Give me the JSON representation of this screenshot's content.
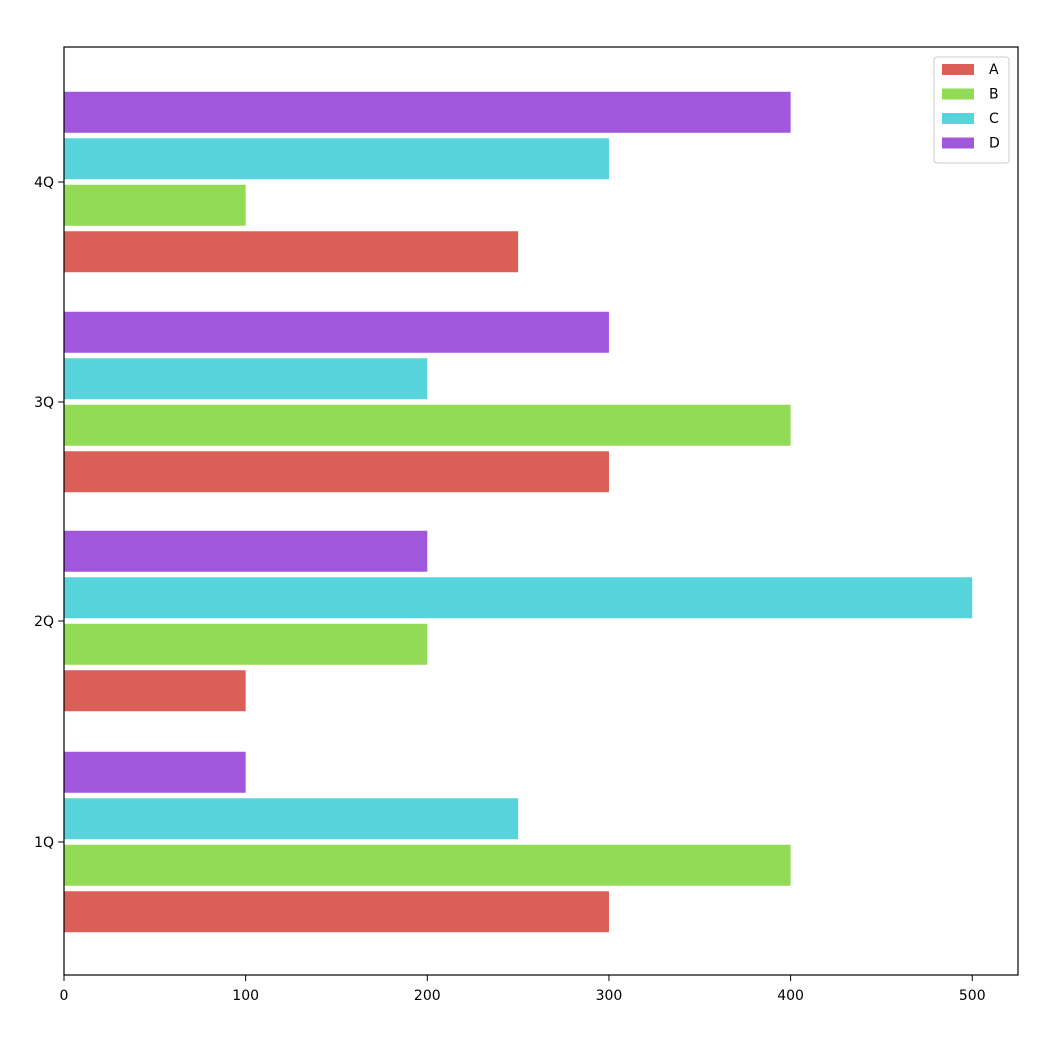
{
  "chart_data": {
    "type": "bar",
    "orientation": "horizontal",
    "categories": [
      "1Q",
      "2Q",
      "3Q",
      "4Q"
    ],
    "series": [
      {
        "name": "A",
        "color": "#db5f57",
        "values": [
          300,
          100,
          300,
          250
        ]
      },
      {
        "name": "B",
        "color": "#91db57",
        "values": [
          400,
          200,
          400,
          100
        ]
      },
      {
        "name": "C",
        "color": "#57d3db",
        "values": [
          250,
          500,
          200,
          300
        ]
      },
      {
        "name": "D",
        "color": "#a157db",
        "values": [
          100,
          200,
          300,
          400
        ]
      }
    ],
    "xlim": [
      0,
      525
    ],
    "xticks": [
      0,
      100,
      200,
      300,
      400,
      500
    ],
    "grid": false,
    "legend": "top-right",
    "title": "",
    "xlabel": "",
    "ylabel": ""
  }
}
